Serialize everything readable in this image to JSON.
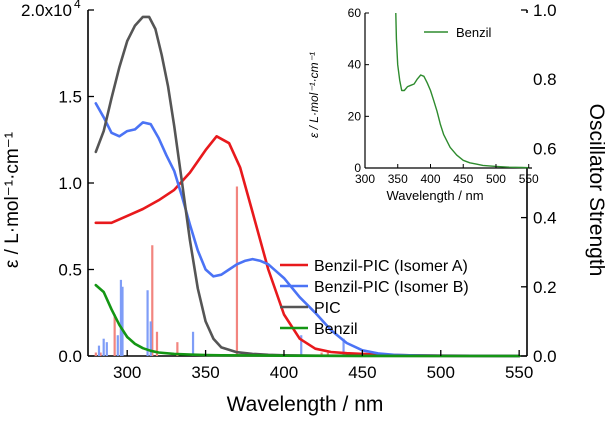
{
  "chart_data": [
    {
      "type": "line",
      "xlabel": "Wavelength  / nm",
      "ylabel_left": "ε / L·mol⁻¹·cm⁻¹",
      "ylabel_right": "Oscillator Strength",
      "xlim": [
        275,
        555
      ],
      "ylim_left": [
        0,
        20000
      ],
      "ylim_right": [
        0,
        1.0
      ],
      "x_ticks": [
        300,
        350,
        400,
        450,
        500,
        550
      ],
      "y_ticks_left": [
        {
          "v": 0,
          "label": "0.0"
        },
        {
          "v": 5000,
          "label": "0.5"
        },
        {
          "v": 10000,
          "label": "1.0"
        },
        {
          "v": 15000,
          "label": "1.5"
        },
        {
          "v": 20000,
          "label": "2.0x10"
        }
      ],
      "y_left_exponent": "4",
      "y_ticks_right": [
        "0.0",
        "0.2",
        "0.4",
        "0.6",
        "0.8",
        "1.0"
      ],
      "legend_position": "center-right",
      "series": [
        {
          "name": "Benzil-PIC (Isomer A)",
          "color": "#e8191c",
          "x": [
            280,
            290,
            300,
            310,
            320,
            330,
            340,
            350,
            357,
            365,
            372,
            380,
            390,
            400,
            410,
            420,
            430,
            440,
            450,
            460,
            470,
            480,
            500,
            520,
            550
          ],
          "y": [
            7700,
            7700,
            8100,
            8500,
            9000,
            9600,
            10600,
            11900,
            12700,
            12300,
            10900,
            8300,
            5000,
            2400,
            1000,
            420,
            230,
            160,
            120,
            90,
            60,
            40,
            20,
            10,
            0
          ]
        },
        {
          "name": "Benzil-PIC (Isomer B)",
          "color": "#4b73f5",
          "x": [
            280,
            285,
            290,
            295,
            300,
            305,
            310,
            315,
            320,
            325,
            330,
            335,
            340,
            345,
            350,
            355,
            360,
            365,
            370,
            375,
            380,
            385,
            390,
            395,
            400,
            410,
            420,
            430,
            440,
            450,
            460,
            470,
            480,
            500,
            520,
            550
          ],
          "y": [
            14600,
            13800,
            12900,
            12700,
            13000,
            13100,
            13500,
            13400,
            12600,
            11600,
            10700,
            9200,
            7600,
            6100,
            5000,
            4600,
            4700,
            5000,
            5300,
            5500,
            5600,
            5500,
            5300,
            4900,
            4500,
            3400,
            2500,
            1500,
            750,
            330,
            150,
            70,
            40,
            20,
            10,
            0
          ]
        },
        {
          "name": "PIC",
          "color": "#555555",
          "x": [
            280,
            285,
            290,
            295,
            300,
            305,
            310,
            314,
            318,
            322,
            326,
            330,
            335,
            340,
            345,
            350,
            355,
            360,
            370,
            380,
            390,
            400,
            420,
            450,
            500,
            550
          ],
          "y": [
            11800,
            13000,
            14900,
            16700,
            18200,
            19100,
            19600,
            19600,
            18900,
            17400,
            15600,
            13300,
            10000,
            6700,
            3900,
            2000,
            1000,
            500,
            220,
            120,
            70,
            40,
            20,
            10,
            5,
            0
          ]
        },
        {
          "name": "Benzil",
          "color": "#149614",
          "x": [
            280,
            285,
            290,
            295,
            300,
            305,
            310,
            315,
            320,
            330,
            340,
            350,
            360,
            380,
            400,
            450,
            500,
            550
          ],
          "y": [
            4100,
            3700,
            2700,
            1800,
            1100,
            700,
            450,
            300,
            200,
            120,
            80,
            50,
            40,
            35,
            20,
            5,
            2,
            0
          ]
        }
      ],
      "oscillator_sticks": [
        {
          "color": "#f2857f",
          "x": [
            280,
            283,
            292,
            296,
            316,
            319,
            332,
            370,
            424,
            428
          ],
          "y": [
            0.01,
            0.01,
            0.12,
            0.08,
            0.32,
            0.07,
            0.04,
            0.49,
            0.01,
            0.01
          ]
        },
        {
          "color": "#7f9df7",
          "x": [
            282,
            285,
            287,
            294,
            296,
            297,
            313,
            315,
            342,
            411,
            438
          ],
          "y": [
            0.03,
            0.05,
            0.04,
            0.06,
            0.22,
            0.2,
            0.19,
            0.1,
            0.07,
            0.06,
            0.05
          ]
        }
      ]
    },
    {
      "type": "line",
      "xlabel": "Wavelength  / nm",
      "ylabel": "ε / L·mol⁻¹·cm⁻¹",
      "xlim": [
        300,
        555
      ],
      "ylim": [
        0,
        60
      ],
      "x_ticks": [
        300,
        350,
        400,
        450,
        500,
        550
      ],
      "y_ticks": [
        0,
        20,
        40,
        60
      ],
      "legend_position": "top-right",
      "series": [
        {
          "name": "Benzil",
          "color": "#2e8b2e",
          "x": [
            347,
            348,
            350,
            353,
            356,
            360,
            365,
            370,
            375,
            380,
            385,
            390,
            395,
            400,
            405,
            410,
            415,
            420,
            430,
            440,
            450,
            460,
            470,
            480,
            490,
            500,
            520,
            540,
            550
          ],
          "y": [
            60,
            50,
            40,
            34,
            30,
            30,
            31.5,
            32,
            32.5,
            34.5,
            36,
            35.5,
            33,
            30,
            26,
            22,
            17,
            13,
            8,
            5,
            3,
            2,
            1.5,
            1,
            0.8,
            0.6,
            0.3,
            0.2,
            0.1
          ]
        }
      ]
    }
  ]
}
